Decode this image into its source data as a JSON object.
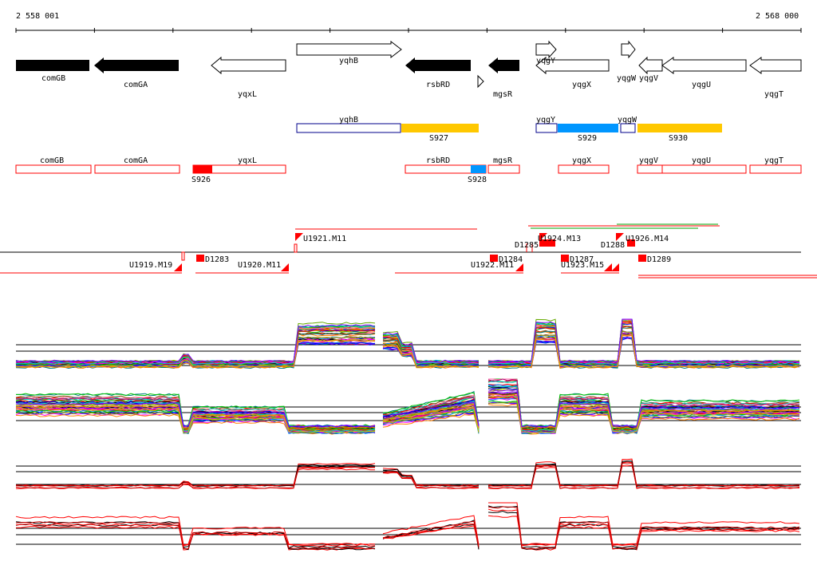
{
  "ruler": {
    "start": "2 558 001",
    "end": "2 568 000"
  },
  "colors": {
    "gene_fill_dark": "#000000",
    "gene_outline": "#000000",
    "segment_outline": "#00008b",
    "sigma_yellow": "#ffc800",
    "sigma_blue": "#0096ff",
    "operon_red": "#ff0000",
    "green_line": "#00a000"
  },
  "genes": [
    {
      "label": "comGB"
    },
    {
      "label": "comGA"
    },
    {
      "label": "yqxL"
    },
    {
      "label": "yqhB"
    },
    {
      "label": "rsbRD"
    },
    {
      "label": "mgsR"
    },
    {
      "label": "yqgY"
    },
    {
      "label": "yqgX"
    },
    {
      "label": "yqgW"
    },
    {
      "label": "yqgV"
    },
    {
      "label": "yqgU"
    },
    {
      "label": "yqgT"
    }
  ],
  "sigma_track": {
    "segments": [
      {
        "label": "yqhB"
      },
      {
        "label": "yqgY"
      },
      {
        "label": "yqgW"
      }
    ],
    "sigmas": [
      {
        "label": "S927"
      },
      {
        "label": "S929"
      },
      {
        "label": "S930"
      }
    ]
  },
  "operon_track": {
    "boxes": [
      {
        "label": "comGB"
      },
      {
        "label": "comGA"
      },
      {
        "label": "yqxL"
      },
      {
        "label": "rsbRD"
      },
      {
        "label": "mgsR"
      },
      {
        "label": "yqgX"
      },
      {
        "label": "yqgV"
      },
      {
        "label": "yqgU"
      },
      {
        "label": "yqgT"
      }
    ],
    "marks": [
      {
        "label": "S926"
      },
      {
        "label": "S928"
      }
    ]
  },
  "transcripts": {
    "up": [
      {
        "label": "U1921.M11"
      },
      {
        "label": "U1926.M14"
      },
      {
        "label": "D1285"
      },
      {
        "label": "U1924.M13"
      },
      {
        "label": "D1288"
      }
    ],
    "down": [
      {
        "label": "U1919.M19"
      },
      {
        "label": "D1283"
      },
      {
        "label": "U1920.M11"
      },
      {
        "label": "U1922.M11"
      },
      {
        "label": "D1284"
      },
      {
        "label": "D1287"
      },
      {
        "label": "U1923.M15"
      },
      {
        "label": "D1289"
      }
    ]
  },
  "expression_panels": [
    {
      "name": "top-forward-multi"
    },
    {
      "name": "top-reverse-multi"
    },
    {
      "name": "bottom-forward-selected"
    },
    {
      "name": "bottom-reverse-selected"
    }
  ]
}
